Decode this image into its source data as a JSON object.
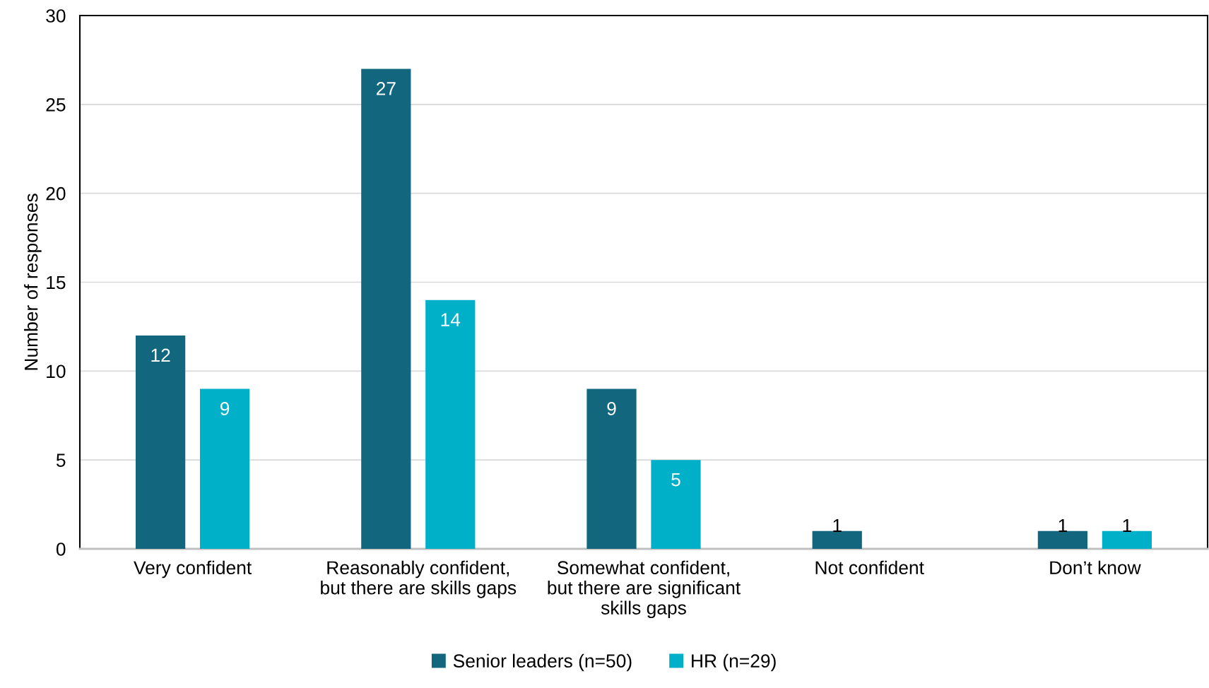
{
  "chart_data": {
    "type": "bar",
    "ylabel": "Number of responses",
    "categories": [
      "Very confident",
      "Reasonably confident,\nbut there are skills gaps",
      "Somewhat confident,\nbut there are significant\nskills gaps",
      "Not confident",
      "Don’t know"
    ],
    "series": [
      {
        "name": "Senior leaders (n=50)",
        "color": "#12667e",
        "values": [
          12,
          27,
          9,
          1,
          1
        ]
      },
      {
        "name": "HR (n=29)",
        "color": "#00afc8",
        "values": [
          9,
          14,
          5,
          null,
          1
        ]
      }
    ],
    "ylim": [
      0,
      30
    ],
    "yticks": [
      0,
      5,
      10,
      15,
      20,
      25,
      30
    ],
    "grid": "y",
    "legend": "bottom",
    "data_labels": true
  }
}
